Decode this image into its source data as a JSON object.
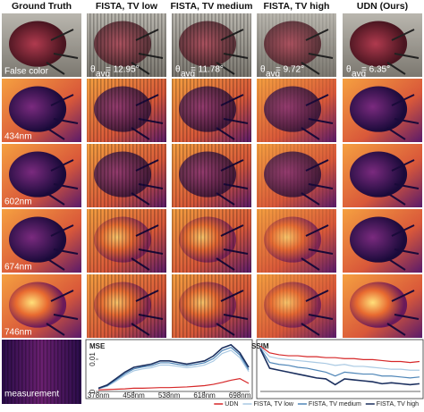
{
  "columns": [
    "Ground Truth",
    "FISTA, TV low",
    "FISTA, TV medium",
    "FISTA, TV high",
    "UDN (Ours)"
  ],
  "rows": [
    "False color",
    "434nm",
    "602nm",
    "674nm",
    "746nm"
  ],
  "angles": [
    {
      "symbol": "θ",
      "subscript": "avg",
      "text": "= 12.95°"
    },
    {
      "symbol": "θ",
      "subscript": "avg",
      "text": "= 11.78°"
    },
    {
      "symbol": "θ",
      "subscript": "avg",
      "text": "= 9.72°"
    },
    {
      "symbol": "θ",
      "subscript": "avg",
      "text": "= 6.35°"
    }
  ],
  "measurement_label": "measurement",
  "chart_data": [
    {
      "type": "line",
      "title": "MSE",
      "x": [
        378,
        398,
        418,
        438,
        458,
        478,
        498,
        518,
        538,
        558,
        578,
        598,
        618,
        638,
        658,
        678,
        698,
        718
      ],
      "xlim": [
        378,
        720
      ],
      "xticks": [
        {
          "value": 378,
          "label": "378nm"
        },
        {
          "value": 458,
          "label": "458nm"
        },
        {
          "value": 538,
          "label": "538nm"
        },
        {
          "value": 618,
          "label": "618nm"
        },
        {
          "value": 698,
          "label": "698nm"
        }
      ],
      "ylim": [
        0,
        0.015
      ],
      "yticks": [
        0,
        0.01
      ],
      "series": [
        {
          "name": "UDN",
          "color": "#d62728",
          "values": [
            0.0005,
            0.0006,
            0.0007,
            0.0008,
            0.001,
            0.001,
            0.0011,
            0.0012,
            0.0012,
            0.0013,
            0.0014,
            0.0016,
            0.0018,
            0.0022,
            0.0028,
            0.0035,
            0.004,
            0.0025
          ]
        },
        {
          "name": "FISTA, TV low",
          "color": "#a9c9e3",
          "values": [
            0.0008,
            0.0016,
            0.0032,
            0.005,
            0.0064,
            0.007,
            0.0074,
            0.0082,
            0.0082,
            0.0078,
            0.0074,
            0.0077,
            0.0082,
            0.0094,
            0.0118,
            0.0128,
            0.0105,
            0.0062
          ]
        },
        {
          "name": "FISTA, TV medium",
          "color": "#4f86b8",
          "values": [
            0.0009,
            0.0018,
            0.0036,
            0.0055,
            0.007,
            0.0076,
            0.008,
            0.0089,
            0.0089,
            0.0084,
            0.008,
            0.0084,
            0.0089,
            0.0102,
            0.0127,
            0.0137,
            0.0113,
            0.0068
          ]
        },
        {
          "name": "FISTA, TV high",
          "color": "#1b2f5e",
          "values": [
            0.001,
            0.002,
            0.004,
            0.006,
            0.0075,
            0.008,
            0.0085,
            0.0095,
            0.0095,
            0.009,
            0.0085,
            0.009,
            0.0095,
            0.011,
            0.0135,
            0.0145,
            0.012,
            0.0075
          ]
        }
      ]
    },
    {
      "type": "line",
      "title": "SSIM",
      "x": [
        378,
        398,
        418,
        438,
        458,
        478,
        498,
        518,
        538,
        558,
        578,
        598,
        618,
        638,
        658,
        678,
        698,
        718
      ],
      "xlim": [
        378,
        720
      ],
      "ylim": [
        0.5,
        1.0
      ],
      "series": [
        {
          "color": "#d62728",
          "values": [
            0.97,
            0.9,
            0.88,
            0.87,
            0.87,
            0.86,
            0.86,
            0.85,
            0.85,
            0.84,
            0.84,
            0.83,
            0.83,
            0.82,
            0.81,
            0.81,
            0.8,
            0.81
          ]
        },
        {
          "color": "#a9c9e3",
          "values": [
            0.96,
            0.86,
            0.84,
            0.83,
            0.82,
            0.81,
            0.8,
            0.79,
            0.77,
            0.78,
            0.76,
            0.76,
            0.75,
            0.74,
            0.73,
            0.73,
            0.72,
            0.72
          ]
        },
        {
          "color": "#4f86b8",
          "values": [
            0.95,
            0.8,
            0.78,
            0.77,
            0.75,
            0.74,
            0.72,
            0.7,
            0.66,
            0.7,
            0.69,
            0.68,
            0.68,
            0.66,
            0.66,
            0.65,
            0.64,
            0.65
          ]
        },
        {
          "color": "#1b2f5e",
          "values": [
            0.94,
            0.74,
            0.72,
            0.7,
            0.68,
            0.66,
            0.64,
            0.63,
            0.57,
            0.63,
            0.62,
            0.61,
            0.6,
            0.58,
            0.59,
            0.58,
            0.57,
            0.58
          ]
        }
      ]
    }
  ]
}
